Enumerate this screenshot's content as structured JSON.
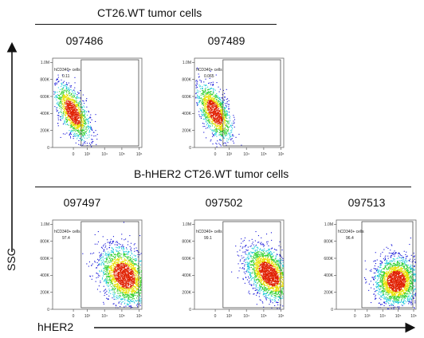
{
  "groups": [
    {
      "title": "CT26.WT tumor cells",
      "samples": [
        "097486",
        "097489"
      ]
    },
    {
      "title": "B-hHER2 CT26.WT tumor cells",
      "samples": [
        "097497",
        "097502",
        "097513"
      ]
    }
  ],
  "axes": {
    "y_name": "SSC",
    "x_name": "hHER2"
  },
  "chart_data": [
    {
      "type": "scatter",
      "sample": "097486",
      "gate_label": "hCD340+ cells",
      "gate_percent": "0.11",
      "x_axis": {
        "scale": "log",
        "tick_labels": [
          "0",
          "10³",
          "10⁴",
          "10⁵",
          "10⁶"
        ]
      },
      "y_axis": {
        "tick_labels": [
          "0",
          "200K",
          "400K",
          "600K",
          "800K",
          "1.0M"
        ],
        "ylim": [
          0,
          1050000
        ]
      },
      "population": {
        "x_center": "≈0",
        "y_center": 350000
      }
    },
    {
      "type": "scatter",
      "sample": "097489",
      "gate_label": "hCD340+ cells",
      "gate_percent": "0.065",
      "x_axis": {
        "scale": "log",
        "tick_labels": [
          "0",
          "10³",
          "10⁴",
          "10⁵",
          "10⁶"
        ]
      },
      "y_axis": {
        "tick_labels": [
          "0",
          "200K",
          "400K",
          "600K",
          "800K",
          "1.0M"
        ],
        "ylim": [
          0,
          1050000
        ]
      },
      "population": {
        "x_center": "≈0",
        "y_center": 350000
      }
    },
    {
      "type": "scatter",
      "sample": "097497",
      "gate_label": "hCD340+ cells",
      "gate_percent": "97.4",
      "x_axis": {
        "scale": "log",
        "tick_labels": [
          "0",
          "10³",
          "10⁴",
          "10⁵",
          "10⁶"
        ]
      },
      "y_axis": {
        "tick_labels": [
          "0",
          "200K",
          "400K",
          "600K",
          "800K",
          "1.0M"
        ],
        "ylim": [
          0,
          1050000
        ]
      },
      "population": {
        "x_center": "≈10⁵",
        "y_center": 380000
      }
    },
    {
      "type": "scatter",
      "sample": "097502",
      "gate_label": "hCD340+ cells",
      "gate_percent": "99.1",
      "x_axis": {
        "scale": "log",
        "tick_labels": [
          "0",
          "10³",
          "10⁴",
          "10⁵",
          "10⁶"
        ]
      },
      "y_axis": {
        "tick_labels": [
          "0",
          "200K",
          "400K",
          "600K",
          "800K",
          "1.0M"
        ],
        "ylim": [
          0,
          1050000
        ]
      },
      "population": {
        "x_center": "≈10⁵",
        "y_center": 380000
      }
    },
    {
      "type": "scatter",
      "sample": "097513",
      "gate_label": "hCD340+ cells",
      "gate_percent": "96.4",
      "x_axis": {
        "scale": "log",
        "tick_labels": [
          "0",
          "10³",
          "10⁴",
          "10⁵",
          "10⁶"
        ]
      },
      "y_axis": {
        "tick_labels": [
          "0",
          "200K",
          "400K",
          "600K",
          "800K",
          "1.0M"
        ],
        "ylim": [
          0,
          1050000
        ]
      },
      "population": {
        "x_center": "≈10⁴·⁵",
        "y_center": 330000
      }
    }
  ],
  "colors": {
    "density_low": "#1010d8",
    "density_mid": "#18c8d8",
    "density_midhigh": "#30d030",
    "density_high": "#e8e000",
    "density_peak": "#e02000"
  }
}
